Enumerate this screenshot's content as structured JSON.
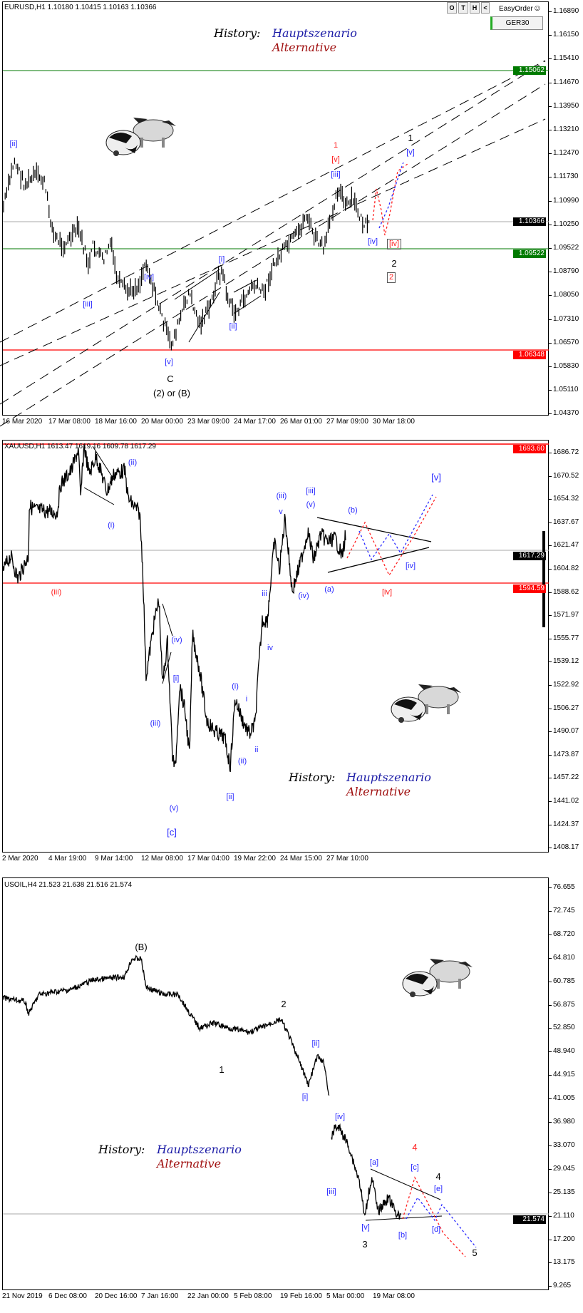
{
  "toolbar": {
    "buttons": [
      "O",
      "T",
      "H",
      "<"
    ],
    "easy_order": "EasyOrder",
    "smiley": "☺",
    "ger30": "GER30"
  },
  "legend": {
    "history": "History:",
    "main": "Hauptszenario",
    "alt": "Alternative",
    "main_color": "#1a1aa6",
    "alt_color": "#a01010"
  },
  "colors": {
    "wave_blue": "#2a2aff",
    "wave_red": "#ff2020",
    "support_green": "#007a00",
    "stop_red": "#ff0000"
  },
  "eurusd": {
    "header": "EURUSD,H1  1.10180 1.10415 1.10163 1.10366",
    "axis": [
      "1.16890",
      "1.16150",
      "1.15410",
      "1.14670",
      "1.13950",
      "1.13210",
      "1.12470",
      "1.11730",
      "1.10990",
      "1.10250",
      "1.09522",
      "1.08790",
      "1.08050",
      "1.07310",
      "1.06570",
      "1.05830",
      "1.05110",
      "1.04370"
    ],
    "markers": {
      "green_top": "1.15062",
      "price": "1.10366",
      "green": "1.09522",
      "red": "1.06348"
    },
    "dates": [
      "16 Mar 2020",
      "17 Mar 08:00",
      "18 Mar 16:00",
      "20 Mar 00:00",
      "23 Mar 09:00",
      "24 Mar 17:00",
      "26 Mar 01:00",
      "27 Mar 09:00",
      "30 Mar 18:00"
    ],
    "waves": {
      "ii_top": "[ii]",
      "iii": "[iii]",
      "iv": "[iv]",
      "i": "[i]",
      "ii": "[ii]",
      "v": "[v]",
      "c": "C",
      "c2": "(2) or (B)",
      "one_red": "1",
      "v_red": "[v]",
      "iii_top": "[iii]",
      "one_black": "1",
      "v_blue": "[v]",
      "iv_blue": "[iv]",
      "iv_red": "[iv]",
      "two_black": "2",
      "two_red": "2"
    }
  },
  "xauusd": {
    "header": "XAUUSD,H1  1613.47 1619.16 1609.78 1617.29",
    "axis": [
      "1686.72",
      "1670.52",
      "1654.32",
      "1637.67",
      "1621.47",
      "1604.82",
      "1588.62",
      "1571.97",
      "1555.77",
      "1539.12",
      "1522.92",
      "1506.27",
      "1490.07",
      "1473.87",
      "1457.22",
      "1441.02",
      "1424.37",
      "1408.17"
    ],
    "markers": {
      "red_top": "1693.60",
      "price": "1617.29",
      "red": "1594.59"
    },
    "dates": [
      "2 Mar 2020",
      "4 Mar 19:00",
      "9 Mar 14:00",
      "12 Mar 08:00",
      "17 Mar 04:00",
      "19 Mar 22:00",
      "24 Mar 15:00",
      "27 Mar 10:00"
    ],
    "waves": {
      "ii_p": "(ii)",
      "i_p": "(i)",
      "iii_red": "(iii)",
      "iv_p": "(iv)",
      "i_b": "[i]",
      "iii_p": "(iii)",
      "v_p": "(v)",
      "c_b": "[c]",
      "i_p2": "(i)",
      "i_s": "i",
      "ii_b": "[ii]",
      "ii_p2": "(ii)",
      "ii_s": "ii",
      "iii_s": "iii",
      "iv_s": "iv",
      "iii_p2": "(iii)",
      "v_s": "v",
      "iii_b": "[iii]",
      "v_p2": "(v)",
      "b_p": "(b)",
      "a_p": "(a)",
      "iv_p2": "(iv)",
      "iv_blue": "[iv]",
      "iv_red": "[iv]",
      "v_b": "[v]"
    }
  },
  "usoil": {
    "header": "USOIL,H4  21.523 21.638 21.516 21.574",
    "axis": [
      "76.655",
      "72.745",
      "68.720",
      "64.810",
      "60.785",
      "56.875",
      "52.850",
      "48.940",
      "44.915",
      "41.005",
      "36.980",
      "33.070",
      "29.045",
      "25.135",
      "21.110",
      "17.200",
      "13.175",
      "9.265"
    ],
    "markers": {
      "price": "21.574"
    },
    "dates": [
      "21 Nov 2019",
      "6 Dec 08:00",
      "20 Dec 16:00",
      "7 Jan 16:00",
      "22 Jan 00:00",
      "5 Feb 08:00",
      "19 Feb 16:00",
      "5 Mar 00:00",
      "19 Mar 08:00"
    ],
    "waves": {
      "B": "(B)",
      "two": "2",
      "one": "1",
      "ii": "[ii]",
      "i": "[i]",
      "iv": "[iv]",
      "iii": "[iii]",
      "a": "[a]",
      "four_red": "4",
      "c": "[c]",
      "four": "4",
      "e": "[e]",
      "v": "[v]",
      "b": "[b]",
      "d": "[d]",
      "three": "3",
      "five": "5"
    }
  }
}
